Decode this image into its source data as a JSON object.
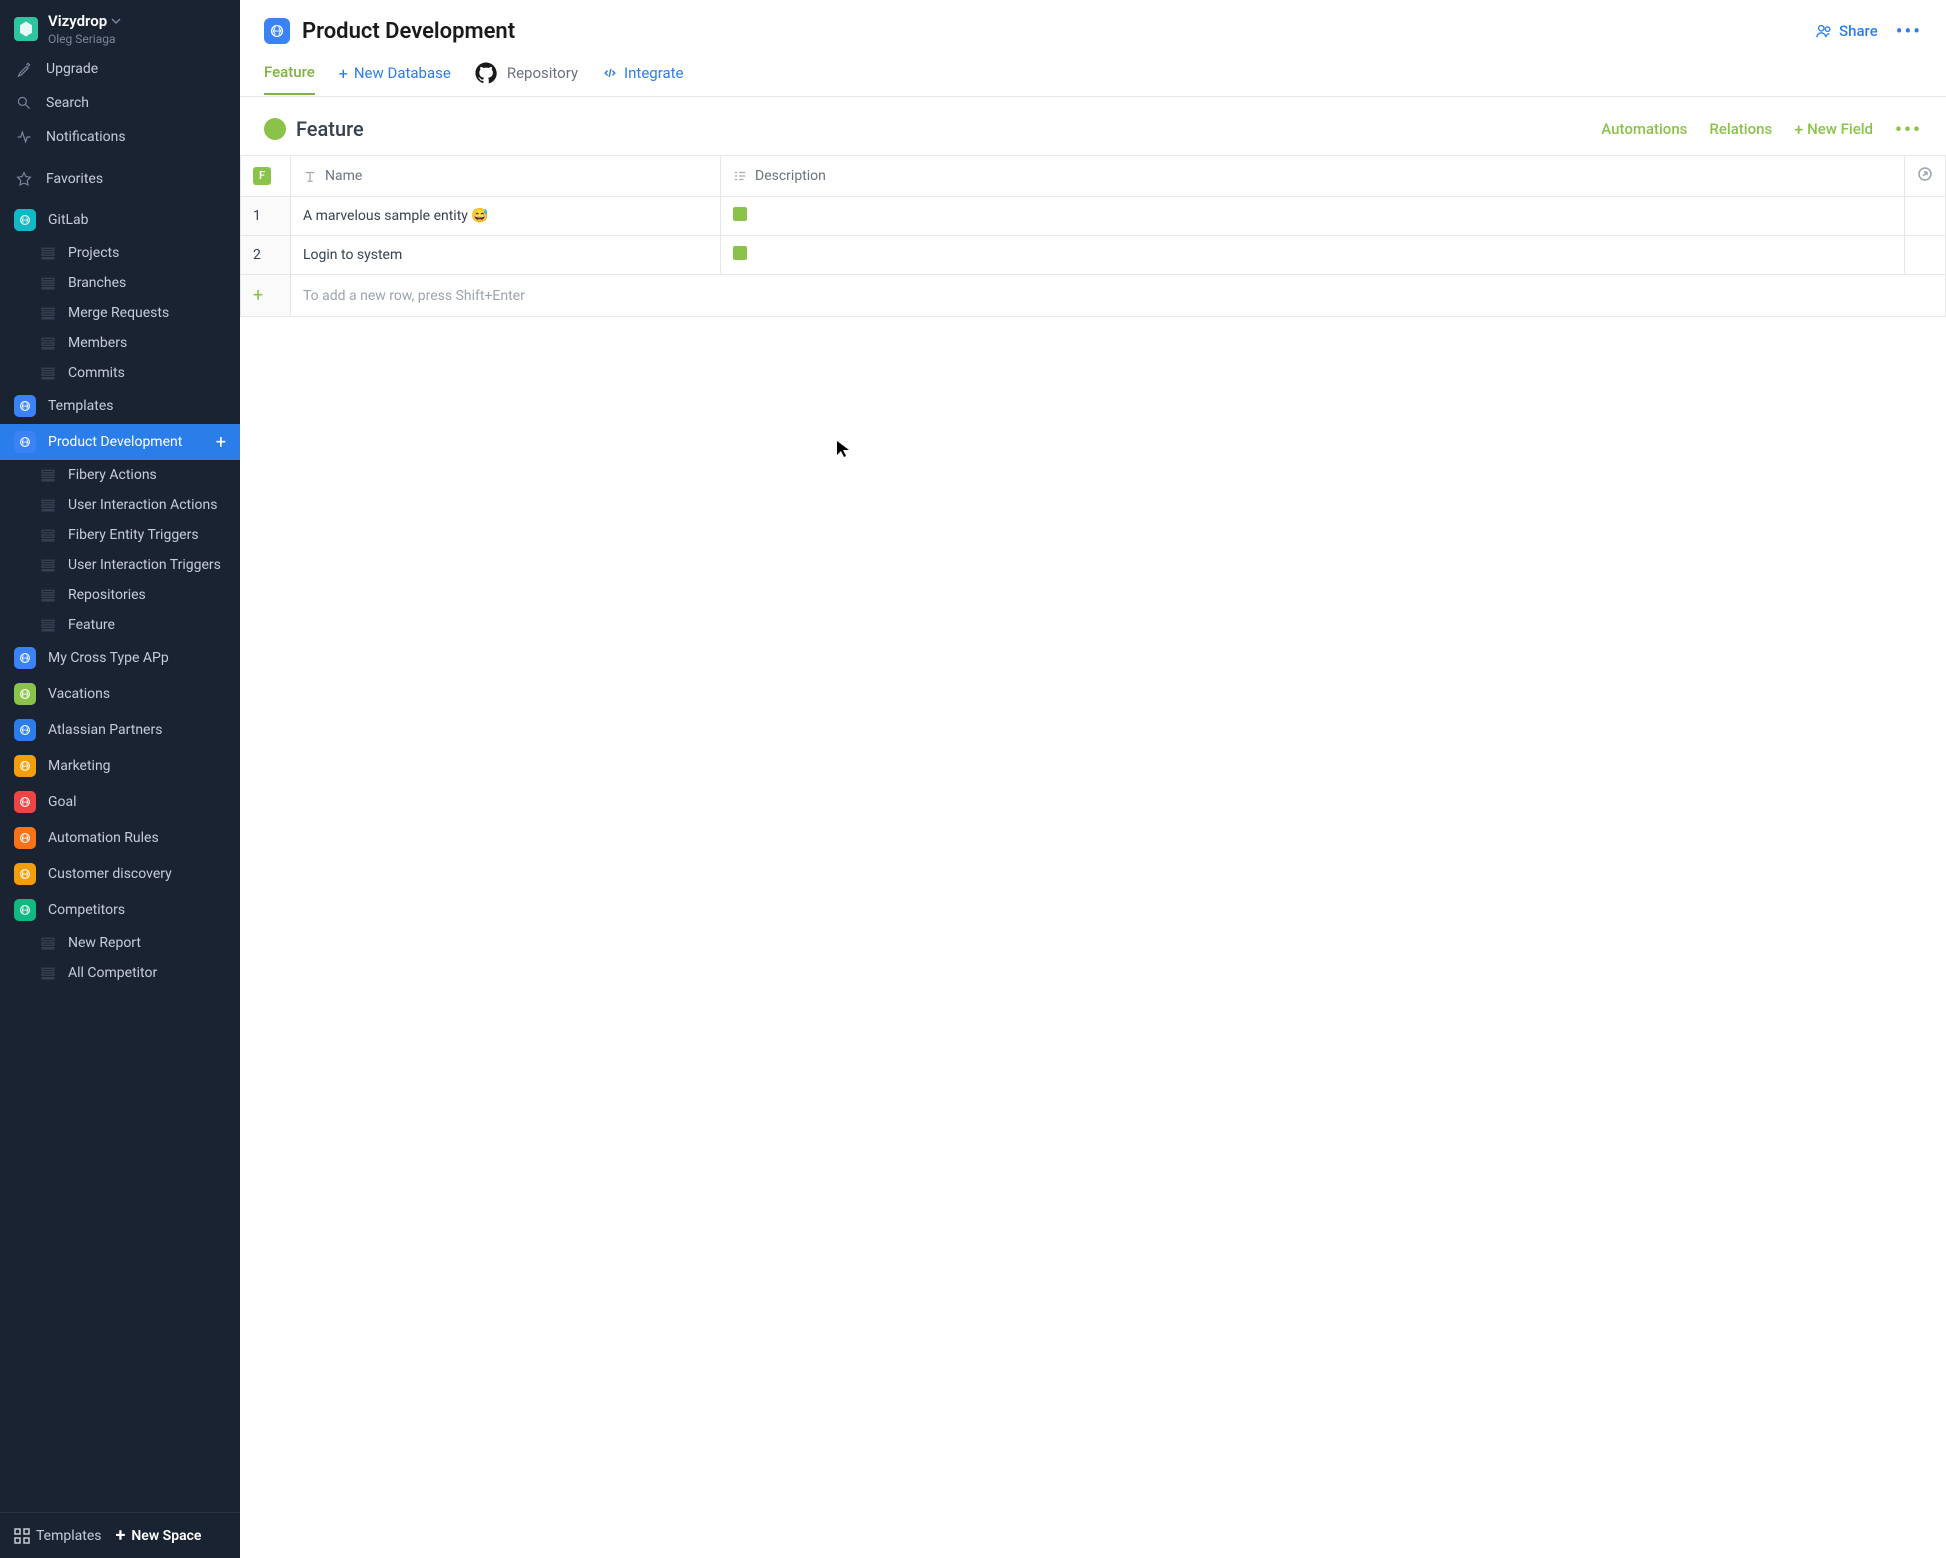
{
  "workspace": {
    "name": "Vizydrop",
    "user": "Oleg Seriaga"
  },
  "sidebar": {
    "upgrade": "Upgrade",
    "search": "Search",
    "notifications": "Notifications",
    "favorites": "Favorites",
    "apps": [
      {
        "name": "GitLab",
        "color": "#10b9c4",
        "children": [
          "Projects",
          "Branches",
          "Merge Requests",
          "Members",
          "Commits"
        ]
      },
      {
        "name": "Templates",
        "color": "#3b82f6",
        "children": []
      },
      {
        "name": "Product Development",
        "color": "#3b82f6",
        "active": true,
        "children": [
          "Fibery Actions",
          "User Interaction Actions",
          "Fibery Entity Triggers",
          "User Interaction Triggers",
          "Repositories",
          "Feature"
        ]
      },
      {
        "name": "My Cross Type APp",
        "color": "#3b82f6",
        "children": []
      },
      {
        "name": "Vacations",
        "color": "#8bc34a",
        "children": []
      },
      {
        "name": "Atlassian Partners",
        "color": "#2b7de9",
        "children": []
      },
      {
        "name": "Marketing",
        "color": "#f59e0b",
        "children": []
      },
      {
        "name": "Goal",
        "color": "#ef4444",
        "children": []
      },
      {
        "name": "Automation Rules",
        "color": "#f97316",
        "children": []
      },
      {
        "name": "Customer discovery",
        "color": "#f59e0b",
        "children": []
      },
      {
        "name": "Competitors",
        "color": "#10b981",
        "children": [
          "New Report",
          "All Competitor"
        ]
      }
    ],
    "templates_footer": "Templates",
    "new_space": "New Space"
  },
  "header": {
    "title": "Product Development",
    "share": "Share"
  },
  "tabs": {
    "feature": "Feature",
    "new_db": "New Database",
    "repository": "Repository",
    "integrate": "Integrate"
  },
  "database": {
    "title": "Feature",
    "dot_color": "#8bc34a",
    "automations": "Automations",
    "relations": "Relations",
    "new_field": "New Field",
    "columns": {
      "name": "Name",
      "description": "Description"
    },
    "f_badge": "F",
    "rows": [
      {
        "num": "1",
        "name": "A marvelous sample entity 😅"
      },
      {
        "num": "2",
        "name": "Login to system"
      }
    ],
    "add_row_hint": "To add a new row, press Shift+Enter"
  },
  "colors": {
    "sidebar_bg": "#1a2332",
    "active_bg": "#2b7de9",
    "accent_green": "#8bc34a",
    "accent_blue": "#2b7de9"
  }
}
